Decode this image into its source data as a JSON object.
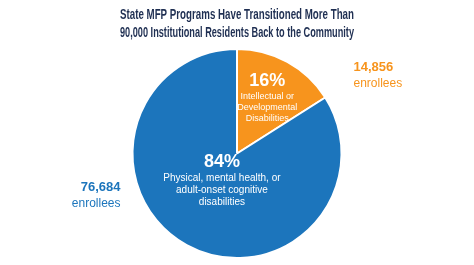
{
  "chart_data": {
    "type": "pie",
    "title": [
      "State MFP Programs Have Transitioned More Than",
      "90,000 Institutional Residents Back to the Community"
    ],
    "categories": [
      "Intellectual or Developmental Disabilities",
      "Physical, mental health, or adult-onset cognitive disabilities"
    ],
    "values": [
      16,
      84
    ],
    "value_labels": [
      "16%",
      "84%"
    ],
    "data_labels": true,
    "enrollee_labels": [
      "14,856 enrollees",
      "76,684 enrollees"
    ],
    "colors": [
      "#f7941d",
      "#1c75bc"
    ]
  }
}
